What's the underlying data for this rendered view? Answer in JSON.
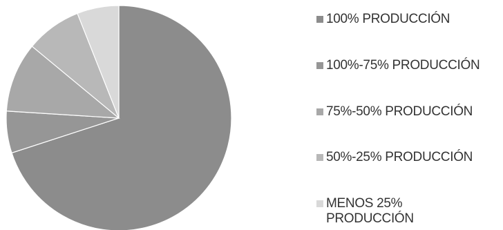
{
  "chart_data": {
    "type": "pie",
    "categories": [
      "100% PRODUCCIÓN",
      "100%-75% PRODUCCIÓN",
      "75%-50% PRODUCCIÓN",
      "50%-25% PRODUCCIÓN",
      "MENOS 25% PRODUCCIÓN"
    ],
    "values": [
      70,
      6,
      10,
      8,
      6
    ],
    "colors": [
      "#8c8c8c",
      "#969696",
      "#a8a8a8",
      "#b8b8b8",
      "#d9d9d9"
    ],
    "title": "",
    "legend_position": "right"
  }
}
